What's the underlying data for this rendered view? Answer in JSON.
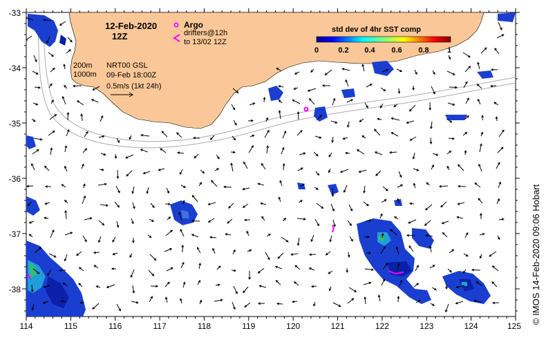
{
  "map": {
    "date": "12-Feb-2020",
    "hour": "12Z",
    "depth_labels": [
      "200m",
      "1000m"
    ],
    "product": "NRT00 GSL",
    "product_time": "09-Feb 18:00Z",
    "scale_label": "0.5m/s (1kt 24h)",
    "longitude_ticks": [
      "114",
      "115",
      "116",
      "117",
      "118",
      "119",
      "120",
      "121",
      "122",
      "123",
      "124",
      "125"
    ],
    "latitude_ticks": [
      "-33",
      "-34",
      "-35",
      "-36",
      "-37",
      "-38"
    ],
    "lon_range": [
      114,
      125
    ],
    "lat_range": [
      -38.5,
      -33
    ],
    "colors": {
      "land": "#fac898",
      "drifter": "#ff00ff",
      "argo": "#ff00ff",
      "isobath": "#aaaaaa",
      "arrow": "#000000"
    }
  },
  "legend": {
    "argo_label": "Argo",
    "drifters_label": "drifters@12h",
    "drifters_sub": "to 13/02 12Z"
  },
  "colorbar": {
    "title": "std dev of 4hr SST comp",
    "ticks": [
      "0",
      "0.2",
      "0.4",
      "0.6",
      "0.8",
      "1"
    ]
  },
  "credit": "© IMOS 14-Feb-2020 09:06 Hobart"
}
